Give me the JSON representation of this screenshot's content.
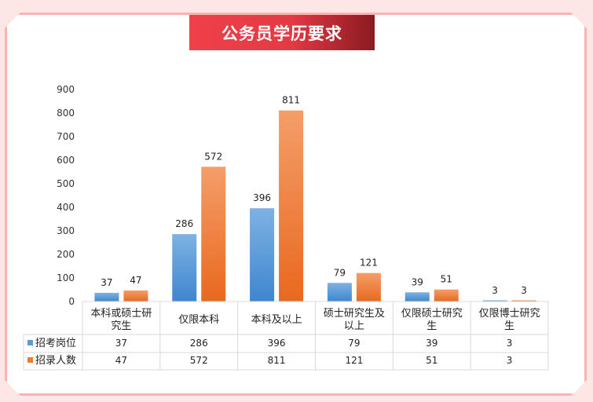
{
  "page": {
    "title": "公务员学历要求"
  },
  "colors": {
    "series1": "#5b9bd5",
    "series2": "#ed7d31",
    "title_bg": "#e23a44",
    "frame": "#f9b3b0",
    "background": "#fde6e6"
  },
  "chart_data": {
    "type": "bar",
    "categories": [
      [
        "本科或硕士研",
        "究生"
      ],
      [
        "仅限本科"
      ],
      [
        "本科及以上"
      ],
      [
        "硕士研究生及",
        "以上"
      ],
      [
        "仅限硕士研究",
        "生"
      ],
      [
        "仅限博士研究",
        "生"
      ]
    ],
    "series": [
      {
        "name": "招考岗位",
        "values": [
          37,
          286,
          396,
          79,
          39,
          3
        ]
      },
      {
        "name": "招录人数",
        "values": [
          47,
          572,
          811,
          121,
          51,
          3
        ]
      }
    ],
    "ylim": [
      0,
      900
    ],
    "yticks": [
      0,
      100,
      200,
      300,
      400,
      500,
      600,
      700,
      800,
      900
    ],
    "grid": false,
    "legend": "data-table"
  }
}
